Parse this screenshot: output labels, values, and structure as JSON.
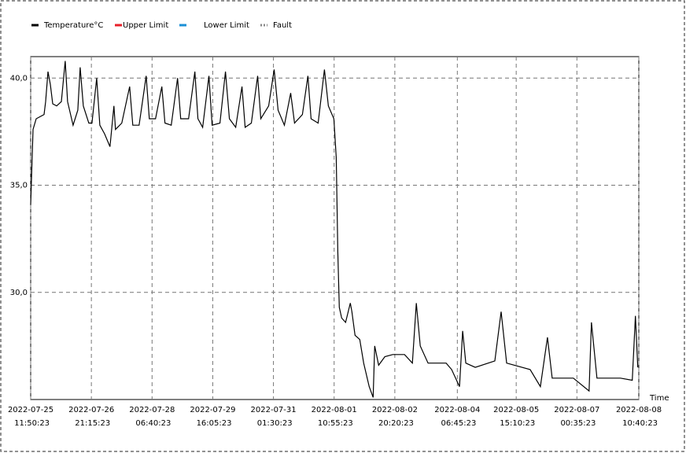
{
  "chart_data": {
    "type": "line",
    "x": [
      "2022-07-25 11:50",
      "2022-07-25 13:08",
      "2022-07-25 14:52",
      "2022-07-25 19:11",
      "2022-07-25 20:03",
      "2022-07-25 21:21",
      "2022-07-25 22:39",
      "2022-07-25 23:57",
      "2022-07-26 02:07",
      "2022-07-26 04:43",
      "2022-07-26 06:52",
      "2022-07-26 08:10",
      "2022-07-26 11:12",
      "2022-07-26 13:47",
      "2022-07-26 15:05",
      "2022-07-26 16:49",
      "2022-07-26 19:50",
      "2022-07-26 21:34",
      "2022-07-27 00:10",
      "2022-07-27 01:54",
      "2022-07-27 04:30",
      "2022-07-27 07:31",
      "2022-07-27 09:41",
      "2022-07-27 10:33",
      "2022-07-27 14:00",
      "2022-07-27 18:20",
      "2022-07-27 20:03",
      "2022-07-27 23:31",
      "2022-07-28 03:25",
      "2022-07-28 05:09",
      "2022-07-28 08:36",
      "2022-07-28 12:04",
      "2022-07-28 13:47",
      "2022-07-28 17:15",
      "2022-07-28 20:42",
      "2022-07-28 22:26",
      "2022-07-29 02:46",
      "2022-07-29 06:14",
      "2022-07-29 07:57",
      "2022-07-29 10:33",
      "2022-07-29 14:00",
      "2022-07-29 15:44",
      "2022-07-29 20:03",
      "2022-07-29 23:05",
      "2022-07-30 01:15",
      "2022-07-30 04:43",
      "2022-07-30 08:10",
      "2022-07-30 09:54",
      "2022-07-30 13:21",
      "2022-07-30 16:49",
      "2022-07-30 18:33",
      "2022-07-30 22:52",
      "2022-07-31 01:54",
      "2022-07-31 04:04",
      "2022-07-31 07:31",
      "2022-07-31 10:59",
      "2022-07-31 13:08",
      "2022-07-31 17:28",
      "2022-07-31 20:29",
      "2022-07-31 22:13",
      "2022-08-01 02:07",
      "2022-08-01 05:35",
      "2022-08-01 07:44",
      "2022-08-01 10:46",
      "2022-08-01 12:04",
      "2022-08-01 12:56",
      "2022-08-01 13:47",
      "2022-08-01 15:05",
      "2022-08-01 17:15",
      "2022-08-01 19:50",
      "2022-08-01 20:42",
      "2022-08-01 22:26",
      "2022-08-02 01:02",
      "2022-08-02 03:12",
      "2022-08-02 06:14",
      "2022-08-02 08:23",
      "2022-08-02 09:15",
      "2022-08-02 11:25",
      "2022-08-02 14:52",
      "2022-08-02 19:11",
      "2022-08-03 01:41",
      "2022-08-03 06:01",
      "2022-08-03 08:10",
      "2022-08-03 10:20",
      "2022-08-03 14:39",
      "2022-08-04 00:36",
      "2022-08-04 03:38",
      "2022-08-04 07:57",
      "2022-08-04 09:41",
      "2022-08-04 11:25",
      "2022-08-04 16:36",
      "2022-08-05 03:25",
      "2022-08-05 06:52",
      "2022-08-05 09:54",
      "2022-08-05 22:52",
      "2022-08-06 04:30",
      "2022-08-06 08:23",
      "2022-08-06 10:59",
      "2022-08-06 22:39",
      "2022-08-07 07:18",
      "2022-08-07 08:36",
      "2022-08-07 11:37",
      "2022-08-08 00:36",
      "2022-08-08 07:05",
      "2022-08-08 08:49",
      "2022-08-08 10:07"
    ],
    "series": [
      {
        "name": "Temperature°C",
        "color": "#000000",
        "values": [
          34.1,
          37.6,
          38.1,
          38.3,
          38.9,
          40.3,
          39.7,
          38.8,
          38.7,
          38.9,
          40.8,
          38.9,
          37.8,
          38.5,
          40.5,
          38.7,
          37.9,
          37.9,
          40.0,
          37.8,
          37.4,
          36.8,
          38.7,
          37.6,
          37.9,
          39.6,
          37.8,
          37.8,
          40.1,
          38.1,
          38.1,
          39.6,
          37.9,
          37.8,
          40.0,
          38.1,
          38.1,
          40.3,
          38.1,
          37.7,
          40.1,
          37.8,
          37.9,
          40.3,
          38.1,
          37.7,
          39.6,
          37.7,
          37.9,
          40.1,
          38.1,
          38.7,
          40.4,
          38.5,
          37.8,
          39.3,
          37.9,
          38.3,
          40.1,
          38.1,
          37.9,
          40.4,
          38.7,
          38.1,
          36.3,
          31.9,
          29.3,
          28.8,
          28.6,
          29.5,
          29.1,
          28.0,
          27.8,
          26.7,
          25.6,
          25.1,
          27.5,
          26.6,
          27.0,
          27.1,
          27.1,
          26.7,
          29.5,
          27.5,
          26.7,
          26.7,
          26.4,
          25.6,
          28.2,
          26.7,
          26.5,
          26.8,
          29.1,
          26.7,
          26.4,
          25.6,
          27.9,
          26.0,
          26.0,
          25.4,
          28.6,
          26.0,
          26.0,
          25.9,
          28.9,
          26.5
        ]
      }
    ],
    "extra_legend": [
      {
        "name": "Upper Limit",
        "color": "#e8202a"
      },
      {
        "name": "Lower Limit",
        "color": "#1a8fd6"
      },
      {
        "name": "Fault",
        "color": "#888888",
        "dotted": true
      }
    ],
    "x_label": "Time",
    "xlim": [
      "2022-07-25 11:50:23",
      "2022-08-08 10:40:23"
    ],
    "xticks": [
      "2022-07-25 11:50:23",
      "2022-07-26 21:15:23",
      "2022-07-28 06:40:23",
      "2022-07-29 16:05:23",
      "2022-07-31 01:30:23",
      "2022-08-01 10:55:23",
      "2022-08-02 20:20:23",
      "2022-08-04 06:45:23",
      "2022-08-05 15:10:23",
      "2022-08-07 00:35:23",
      "2022-08-08 10:40:23"
    ],
    "ylim": [
      25,
      41
    ],
    "yticks": [
      {
        "value": 30,
        "label": "30,0"
      },
      {
        "value": 35,
        "label": "35,0"
      },
      {
        "value": 40,
        "label": "40,0"
      }
    ],
    "grid": true
  }
}
